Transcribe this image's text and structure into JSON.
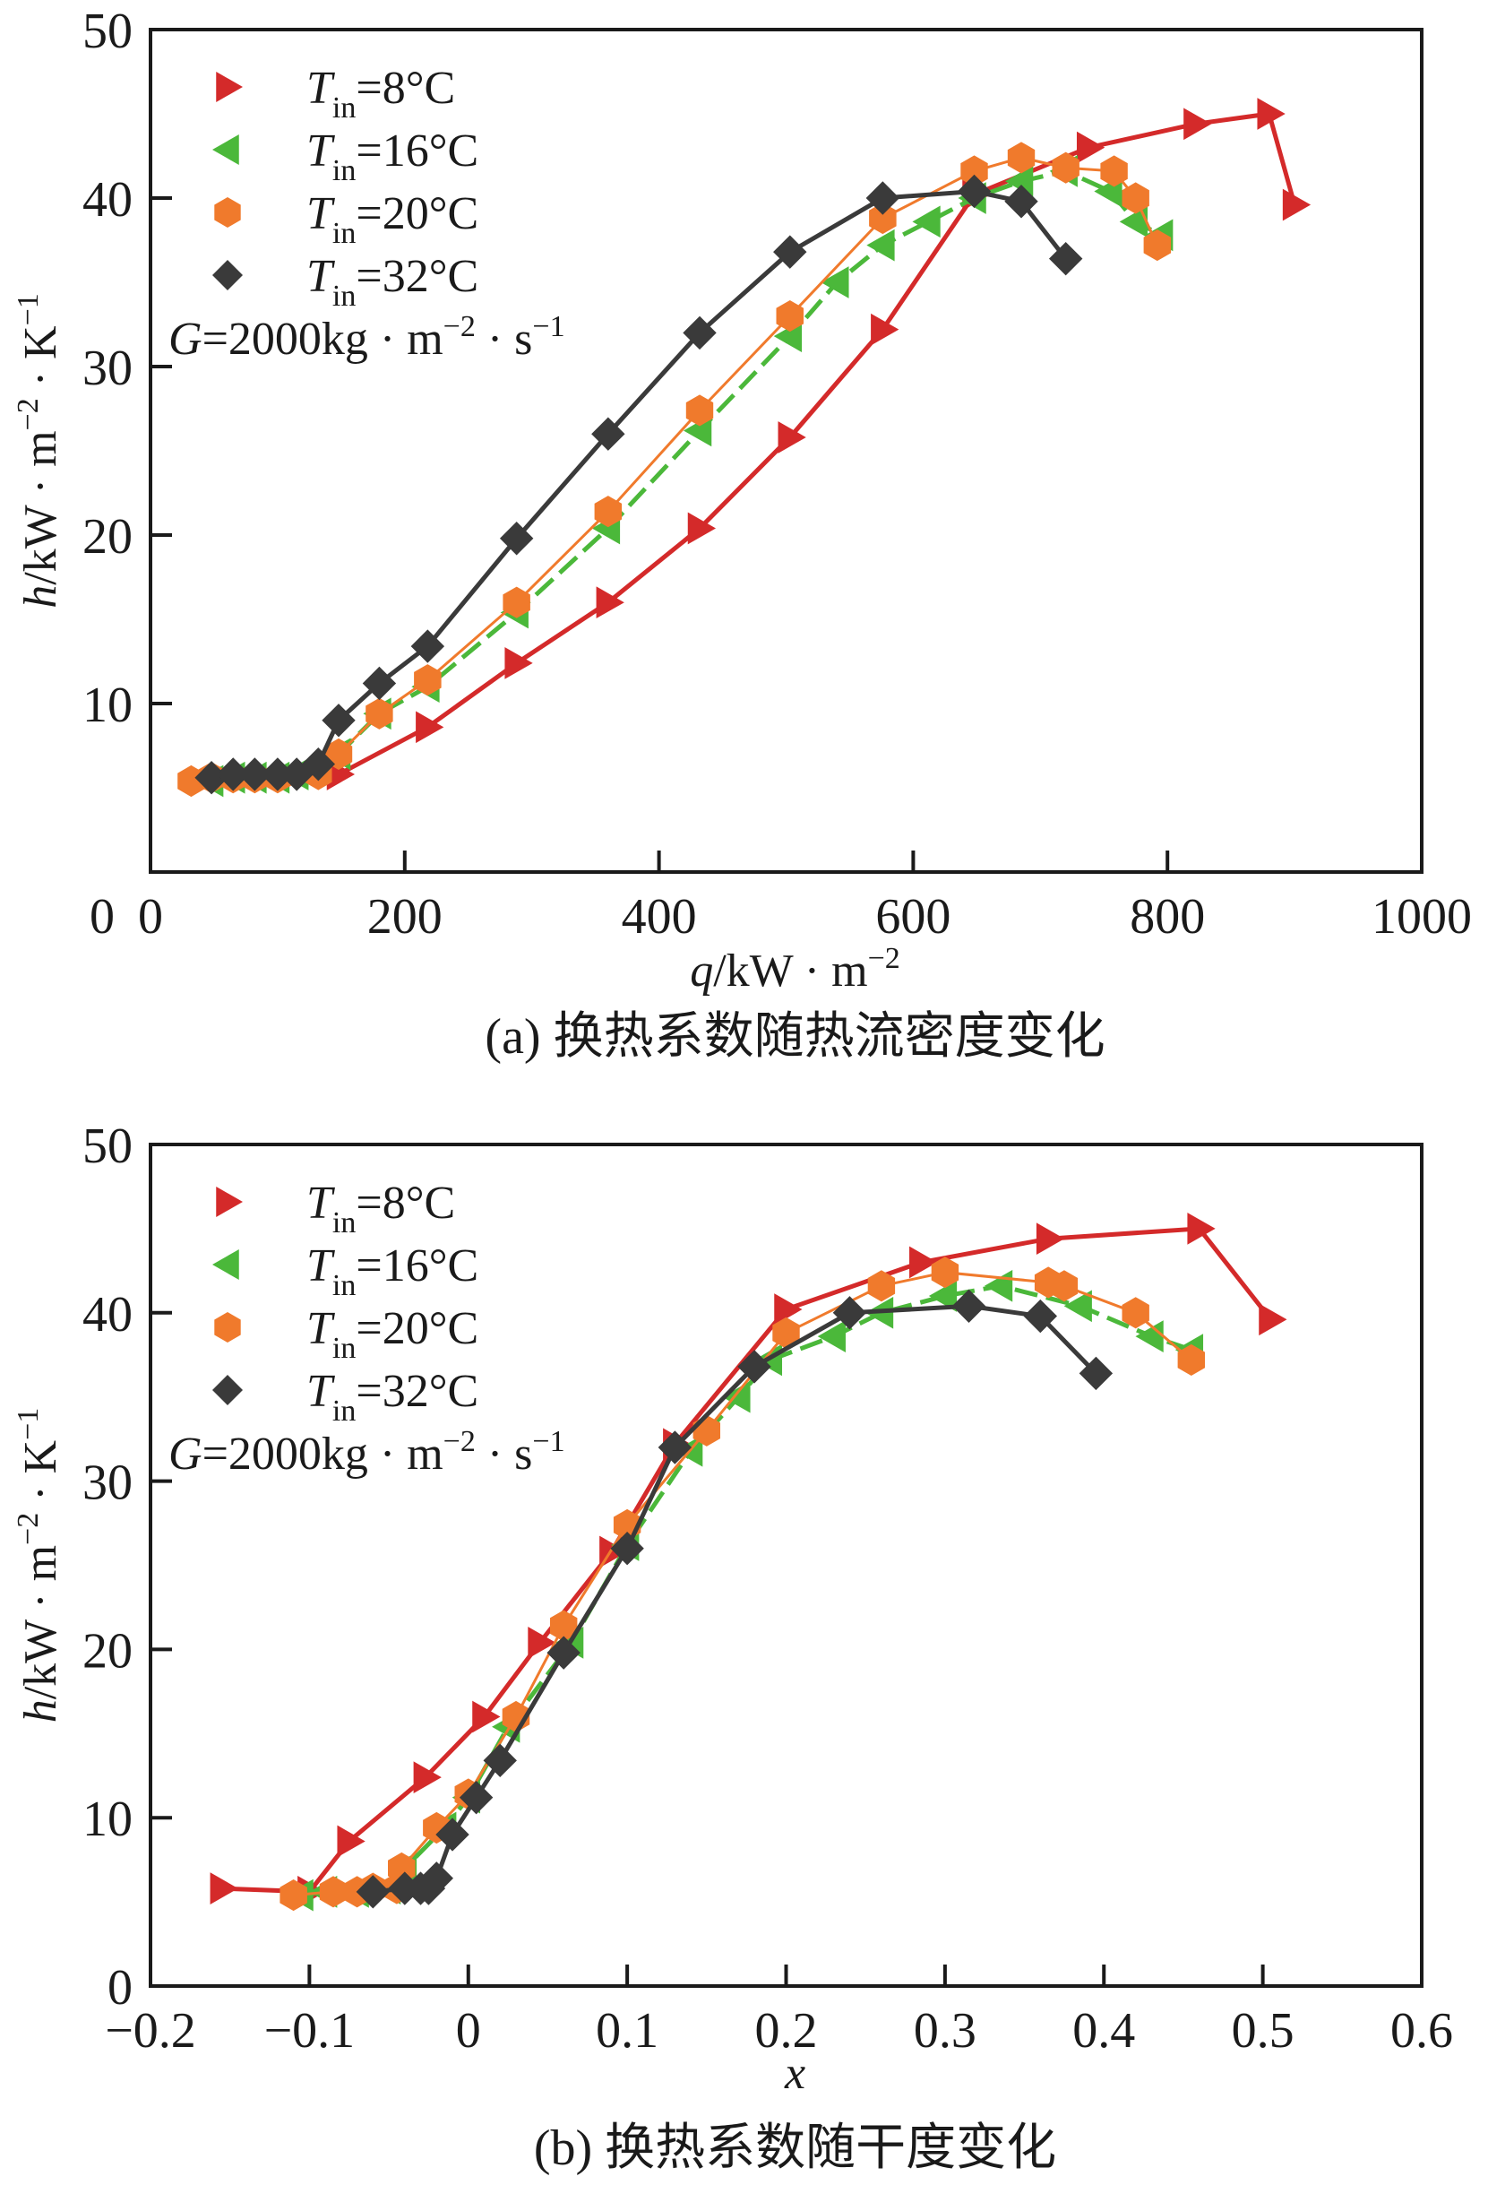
{
  "chart_data": [
    {
      "type": "line",
      "id": "a",
      "caption": "(a) 换热系数随热流密度变化",
      "xlabel": "q/kW · m⁻²",
      "xlabel_parts": {
        "var": "q",
        "unit": "/kW · m",
        "sup": "−2"
      },
      "ylabel": "h/kW · m⁻² · K⁻¹",
      "xlim": [
        0,
        1000
      ],
      "ylim": [
        0,
        50
      ],
      "xticks": [
        0,
        200,
        400,
        600,
        800,
        1000
      ],
      "xtick_labels": [
        "0",
        "200",
        "400",
        "600",
        "800",
        "1000"
      ],
      "yticks": [
        10,
        20,
        30,
        40,
        50
      ],
      "ytick_labels": [
        "10",
        "20",
        "30",
        "40",
        "50"
      ],
      "zero_label": "0",
      "grid": false,
      "legend_position": "top-left",
      "annotation": "G=2000kg · m⁻² · s⁻¹",
      "series": [
        {
          "name": "Tin=8°C",
          "marker": "triangle-right",
          "color": "#d42a2a",
          "dash": "solid",
          "x": [
            148,
            218,
            288,
            360,
            432,
            503,
            576,
            648,
            738,
            822,
            880,
            900
          ],
          "y": [
            5.8,
            8.6,
            12.4,
            16.0,
            20.4,
            25.8,
            32.2,
            40.2,
            43.0,
            44.4,
            45.0,
            39.6
          ]
        },
        {
          "name": "Tin=16°C",
          "marker": "triangle-left",
          "color": "#4bb83a",
          "dash": "dashed",
          "x": [
            48,
            65,
            82,
            100,
            115,
            148,
            180,
            218,
            288,
            360,
            432,
            503,
            540,
            576,
            612,
            648,
            685,
            720,
            755,
            775,
            795
          ],
          "y": [
            5.4,
            5.6,
            5.6,
            5.6,
            5.8,
            7.0,
            9.4,
            11.0,
            15.4,
            20.4,
            26.2,
            31.8,
            35.0,
            37.2,
            38.6,
            40.0,
            41.0,
            41.6,
            40.4,
            38.6,
            37.8
          ]
        },
        {
          "name": "Tin=20°C",
          "marker": "hexagon",
          "color": "#f07a2c",
          "dash": "solid",
          "x": [
            32,
            48,
            65,
            82,
            100,
            132,
            148,
            180,
            218,
            288,
            360,
            432,
            503,
            576,
            648,
            685,
            720,
            758,
            775,
            792
          ],
          "y": [
            5.4,
            5.6,
            5.6,
            5.6,
            5.6,
            5.8,
            7.0,
            9.4,
            11.4,
            16.0,
            21.4,
            27.4,
            33.0,
            38.8,
            41.6,
            42.4,
            41.8,
            41.6,
            40.0,
            37.2
          ]
        },
        {
          "name": "Tin=32°C",
          "marker": "diamond",
          "color": "#3a3a3a",
          "dash": "solid",
          "x": [
            48,
            65,
            82,
            100,
            115,
            132,
            148,
            180,
            218,
            288,
            360,
            432,
            503,
            576,
            648,
            685,
            720
          ],
          "y": [
            5.6,
            5.8,
            5.8,
            5.8,
            5.8,
            6.4,
            9.0,
            11.2,
            13.4,
            19.8,
            26.0,
            32.0,
            36.8,
            40.0,
            40.4,
            39.8,
            36.4
          ]
        }
      ]
    },
    {
      "type": "line",
      "id": "b",
      "caption": "(b) 换热系数随干度变化",
      "xlabel": "x",
      "xlabel_parts": {
        "var": "x",
        "unit": "",
        "sup": ""
      },
      "ylabel": "h/kW · m⁻² · K⁻¹",
      "xlim": [
        -0.2,
        0.6
      ],
      "ylim": [
        0,
        50
      ],
      "xticks": [
        -0.2,
        -0.1,
        0,
        0.1,
        0.2,
        0.3,
        0.4,
        0.5,
        0.6
      ],
      "xtick_labels": [
        "−0.2",
        "−0.1",
        "0",
        "0.1",
        "0.2",
        "0.3",
        "0.4",
        "0.5",
        "0.6"
      ],
      "yticks": [
        0,
        10,
        20,
        30,
        40,
        50
      ],
      "ytick_labels": [
        "0",
        "10",
        "20",
        "30",
        "40",
        "50"
      ],
      "grid": false,
      "legend_position": "top-left",
      "annotation": "G=2000kg · m⁻² · s⁻¹",
      "series": [
        {
          "name": "Tin=8°C",
          "marker": "triangle-right",
          "color": "#d42a2a",
          "dash": "solid",
          "x": [
            -0.155,
            -0.1,
            -0.075,
            -0.027,
            0.01,
            0.045,
            0.09,
            0.13,
            0.2,
            0.285,
            0.365,
            0.46,
            0.505
          ],
          "y": [
            5.8,
            5.6,
            8.6,
            12.4,
            16.0,
            20.4,
            25.8,
            32.2,
            40.2,
            43.0,
            44.4,
            45.0,
            39.6
          ]
        },
        {
          "name": "Tin=16°C",
          "marker": "triangle-left",
          "color": "#4bb83a",
          "dash": "dashed",
          "x": [
            -0.105,
            -0.09,
            -0.07,
            -0.05,
            -0.04,
            -0.015,
            0.0,
            0.025,
            0.065,
            0.1,
            0.14,
            0.17,
            0.19,
            0.23,
            0.26,
            0.3,
            0.335,
            0.385,
            0.43,
            0.455
          ],
          "y": [
            5.4,
            5.6,
            5.6,
            5.8,
            7.0,
            9.4,
            11.2,
            15.4,
            20.4,
            26.2,
            31.8,
            35.0,
            37.2,
            38.6,
            40.0,
            41.0,
            41.6,
            40.4,
            38.6,
            37.8
          ]
        },
        {
          "name": "Tin=20°C",
          "marker": "hexagon",
          "color": "#f07a2c",
          "dash": "solid",
          "x": [
            -0.11,
            -0.085,
            -0.07,
            -0.06,
            -0.045,
            -0.042,
            -0.02,
            0.0,
            0.03,
            0.06,
            0.1,
            0.15,
            0.2,
            0.26,
            0.3,
            0.365,
            0.375,
            0.42,
            0.455
          ],
          "y": [
            5.4,
            5.6,
            5.6,
            5.8,
            5.8,
            7.0,
            9.4,
            11.4,
            16.0,
            21.4,
            27.4,
            33.0,
            38.8,
            41.6,
            42.4,
            41.8,
            41.6,
            40.0,
            37.2
          ]
        },
        {
          "name": "Tin=32°C",
          "marker": "diamond",
          "color": "#3a3a3a",
          "dash": "solid",
          "x": [
            -0.06,
            -0.04,
            -0.03,
            -0.025,
            -0.02,
            -0.01,
            0.005,
            0.02,
            0.06,
            0.1,
            0.13,
            0.18,
            0.24,
            0.315,
            0.36,
            0.395
          ],
          "y": [
            5.6,
            5.8,
            5.8,
            5.8,
            6.4,
            9.0,
            11.2,
            13.4,
            19.8,
            26.0,
            32.0,
            36.8,
            40.0,
            40.4,
            39.8,
            36.4
          ]
        }
      ]
    }
  ],
  "legend_labels": [
    {
      "var": "T",
      "sub": "in",
      "rest": "=8°C"
    },
    {
      "var": "T",
      "sub": "in",
      "rest": "=16°C"
    },
    {
      "var": "T",
      "sub": "in",
      "rest": "=20°C"
    },
    {
      "var": "T",
      "sub": "in",
      "rest": "=32°C"
    }
  ],
  "annotation_parts": {
    "var": "G",
    "text1": "=2000kg · m",
    "sup1": "−2",
    "text2": " · s",
    "sup2": "−1"
  },
  "ylabel_parts": {
    "var": "h",
    "text1": "/kW · m",
    "sup1": "−2",
    "text2": " · K",
    "sup2": "−1"
  }
}
